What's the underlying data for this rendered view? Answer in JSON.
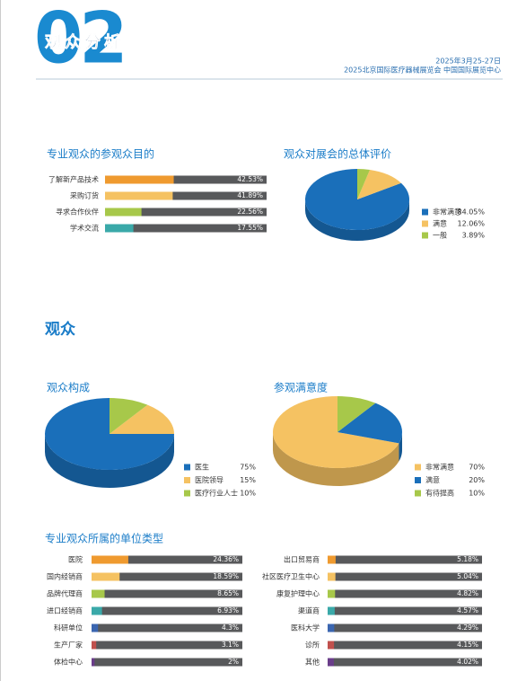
{
  "header": {
    "number": "02",
    "title": "观众分析",
    "date": "2025年3月25-27日",
    "venue": "2025北京国际医疗器械展览会  中国国际展览中心"
  },
  "section": {
    "title": "观众"
  },
  "chart_data": [
    {
      "type": "bar",
      "title": "专业观众的参观众目的",
      "categories": [
        "了解新产品技术",
        "采购订货",
        "寻求合作伙伴",
        "学术交流"
      ],
      "values": [
        42.53,
        41.89,
        22.56,
        17.55
      ],
      "value_labels": [
        "42.53%",
        "41.89%",
        "22.56%",
        "17.55%"
      ],
      "colors": [
        "#ef9a2f",
        "#f5c262",
        "#a7c84a",
        "#3aa9a9"
      ],
      "track_color": "#58595b",
      "xlim": [
        0,
        100
      ]
    },
    {
      "type": "pie",
      "title": "观众对展会的总体评价",
      "categories": [
        "非常满意",
        "满意",
        "一般"
      ],
      "values": [
        84.05,
        12.06,
        3.89
      ],
      "value_labels": [
        "84.05%",
        "12.06%",
        "3.89%"
      ],
      "colors": [
        "#1a6fba",
        "#f5c262",
        "#a7c84a"
      ]
    },
    {
      "type": "pie",
      "title": "观众构成",
      "categories": [
        "医生",
        "医院领导",
        "医疗行业人士"
      ],
      "values": [
        75,
        15,
        10
      ],
      "value_labels": [
        "75%",
        "15%",
        "10%"
      ],
      "colors": [
        "#1a6fba",
        "#f5c262",
        "#a7c84a"
      ]
    },
    {
      "type": "pie",
      "title": "参观满意度",
      "categories": [
        "非常满意",
        "满意",
        "有待提高"
      ],
      "values": [
        70,
        20,
        10
      ],
      "value_labels": [
        "70%",
        "20%",
        "10%"
      ],
      "colors": [
        "#f5c262",
        "#1a6fba",
        "#a7c84a"
      ]
    },
    {
      "type": "bar",
      "title": "专业观众所属的单位类型",
      "categories": [
        "医院",
        "国内经销商",
        "品牌代理商",
        "进口经销商",
        "科研单位",
        "生产厂家",
        "体检中心"
      ],
      "values": [
        24.36,
        18.59,
        8.65,
        6.93,
        4.3,
        3.1,
        2
      ],
      "value_labels": [
        "24.36%",
        "18.59%",
        "8.65%",
        "6.93%",
        "4.3%",
        "3.1%",
        "2%"
      ],
      "colors": [
        "#ef9a2f",
        "#f5c262",
        "#a7c84a",
        "#3aa9a9",
        "#3b66b0",
        "#c0504d",
        "#6a3d8a"
      ],
      "track_color": "#58595b",
      "xlim": [
        0,
        100
      ]
    },
    {
      "type": "bar",
      "categories": [
        "出口贸易商",
        "社区医疗卫生中心",
        "康复护理中心",
        "渠道商",
        "医科大学",
        "诊所",
        "其他"
      ],
      "values": [
        5.18,
        5.04,
        4.82,
        4.57,
        4.29,
        4.15,
        4.02
      ],
      "value_labels": [
        "5.18%",
        "5.04%",
        "4.82%",
        "4.57%",
        "4.29%",
        "4.15%",
        "4.02%"
      ],
      "colors": [
        "#ef9a2f",
        "#f5c262",
        "#a7c84a",
        "#3aa9a9",
        "#3b66b0",
        "#c0504d",
        "#6a3d8a"
      ],
      "track_color": "#58595b",
      "xlim": [
        0,
        100
      ]
    }
  ]
}
